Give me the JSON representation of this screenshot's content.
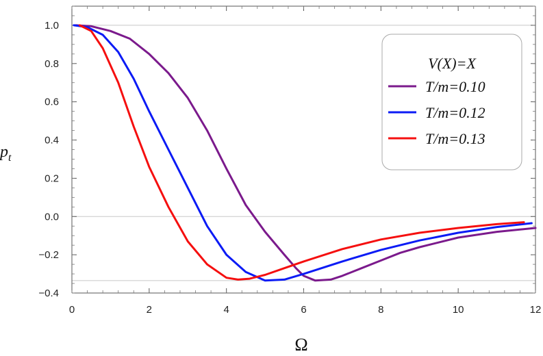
{
  "chart_data": {
    "type": "line",
    "xlabel": "Ω",
    "ylabel_main": "p",
    "ylabel_sub": "t",
    "xlim": [
      0,
      12
    ],
    "ylim": [
      -0.4,
      1.1
    ],
    "xticks": [
      0,
      2,
      4,
      6,
      8,
      10,
      12
    ],
    "xtick_labels": [
      "0",
      "2",
      "4",
      "6",
      "8",
      "10",
      "12"
    ],
    "yticks": [
      -0.4,
      -0.2,
      0.0,
      0.2,
      0.4,
      0.6,
      0.8,
      1.0
    ],
    "ytick_labels": [
      "−0.4",
      "−0.2",
      "0.0",
      "0.2",
      "0.4",
      "0.6",
      "0.8",
      "1.0"
    ],
    "reference_lines_y": [
      1.0,
      0.0,
      -0.335
    ],
    "legend": {
      "title": "V(X)=X",
      "placement": "top-right",
      "entries": [
        "T/m=0.10",
        "T/m=0.12",
        "T/m=0.13"
      ]
    },
    "series": [
      {
        "name": "T/m=0.10",
        "color": "#7b1a8c",
        "x": [
          0.1,
          0.5,
          1.0,
          1.5,
          2.0,
          2.5,
          3.0,
          3.5,
          4.0,
          4.5,
          5.0,
          5.5,
          5.8,
          6.0,
          6.3,
          6.7,
          7.0,
          7.5,
          8.0,
          8.5,
          9.0,
          10.0,
          11.0,
          12.0
        ],
        "y": [
          1.0,
          0.995,
          0.97,
          0.93,
          0.85,
          0.75,
          0.62,
          0.45,
          0.25,
          0.06,
          -0.08,
          -0.2,
          -0.27,
          -0.31,
          -0.335,
          -0.33,
          -0.31,
          -0.27,
          -0.23,
          -0.19,
          -0.16,
          -0.11,
          -0.08,
          -0.06
        ]
      },
      {
        "name": "T/m=0.12",
        "color": "#0b1bf5",
        "x": [
          0.05,
          0.4,
          0.8,
          1.2,
          1.6,
          2.0,
          2.5,
          3.0,
          3.5,
          4.0,
          4.5,
          5.0,
          5.5,
          6.0,
          7.0,
          8.0,
          9.0,
          10.0,
          11.0,
          11.9
        ],
        "y": [
          1.0,
          0.99,
          0.95,
          0.86,
          0.72,
          0.55,
          0.35,
          0.15,
          -0.05,
          -0.2,
          -0.29,
          -0.335,
          -0.33,
          -0.3,
          -0.235,
          -0.175,
          -0.125,
          -0.085,
          -0.055,
          -0.035
        ]
      },
      {
        "name": "T/m=0.13",
        "color": "#f50f0f",
        "x": [
          0.2,
          0.5,
          0.8,
          1.2,
          1.6,
          2.0,
          2.5,
          3.0,
          3.5,
          4.0,
          4.3,
          4.6,
          5.0,
          5.5,
          6.0,
          7.0,
          8.0,
          9.0,
          10.0,
          11.0,
          11.7
        ],
        "y": [
          1.0,
          0.97,
          0.88,
          0.7,
          0.47,
          0.26,
          0.05,
          -0.13,
          -0.25,
          -0.32,
          -0.33,
          -0.325,
          -0.305,
          -0.27,
          -0.235,
          -0.17,
          -0.12,
          -0.085,
          -0.06,
          -0.04,
          -0.03
        ]
      }
    ]
  }
}
